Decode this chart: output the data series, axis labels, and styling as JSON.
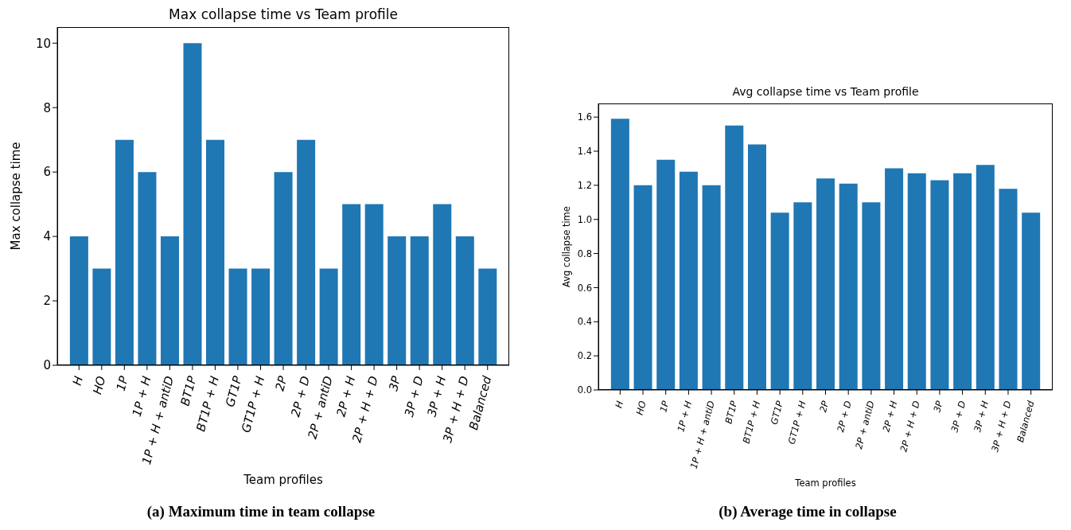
{
  "chart_data": [
    {
      "type": "bar",
      "title": "Max collapse time vs Team profile",
      "xlabel": "Team profiles",
      "ylabel": "Max collapse time",
      "categories": [
        "H",
        "HO",
        "1P",
        "1P + H",
        "1P + H + antiD",
        "BT1P",
        "BT1P + H",
        "GT1P",
        "GT1P + H",
        "2P",
        "2P + D",
        "2P + antiD",
        "2P + H",
        "2P + H + D",
        "3P",
        "3P + D",
        "3P + H",
        "3P + H + D",
        "Balanced"
      ],
      "values": [
        4,
        3,
        7,
        6,
        4,
        10,
        7,
        3,
        3,
        6,
        7,
        3,
        5,
        5,
        4,
        4,
        5,
        4,
        3
      ],
      "color": "#1f77b4",
      "ylim": [
        0,
        10.5
      ],
      "yticks": [
        0,
        2,
        4,
        6,
        8,
        10
      ],
      "annotations": [
        "(a) Maximum time in team collapse"
      ]
    },
    {
      "type": "bar",
      "title": "Avg collapse time vs Team profile",
      "xlabel": "Team profiles",
      "ylabel": "Avg collapse time",
      "categories": [
        "H",
        "HO",
        "1P",
        "1P + H",
        "1P + H + antiD",
        "BT1P",
        "BT1P + H",
        "GT1P",
        "GT1P + H",
        "2P",
        "2P + D",
        "2P + antiD",
        "2P + H",
        "2P + H + D",
        "3P",
        "3P + D",
        "3P + H",
        "3P + H + D",
        "Balanced"
      ],
      "values": [
        1.59,
        1.2,
        1.35,
        1.28,
        1.2,
        1.55,
        1.44,
        1.04,
        1.1,
        1.24,
        1.21,
        1.1,
        1.3,
        1.27,
        1.23,
        1.27,
        1.32,
        1.18,
        1.04
      ],
      "color": "#1f77b4",
      "ylim": [
        0,
        1.68
      ],
      "yticks": [
        {
          "value": 0,
          "label": "0.0"
        },
        {
          "value": 0.2,
          "label": "0.2"
        },
        {
          "value": 0.4,
          "label": "0.4"
        },
        {
          "value": 0.6,
          "label": "0.6"
        },
        {
          "value": 0.8,
          "label": "0.8"
        },
        {
          "value": 1,
          "label": "1.0"
        },
        {
          "value": 1.2,
          "label": "1.2"
        },
        {
          "value": 1.4,
          "label": "1.4"
        },
        {
          "value": 1.6,
          "label": "1.6"
        }
      ],
      "annotations": [
        "(b) Average time in collapse"
      ]
    }
  ]
}
